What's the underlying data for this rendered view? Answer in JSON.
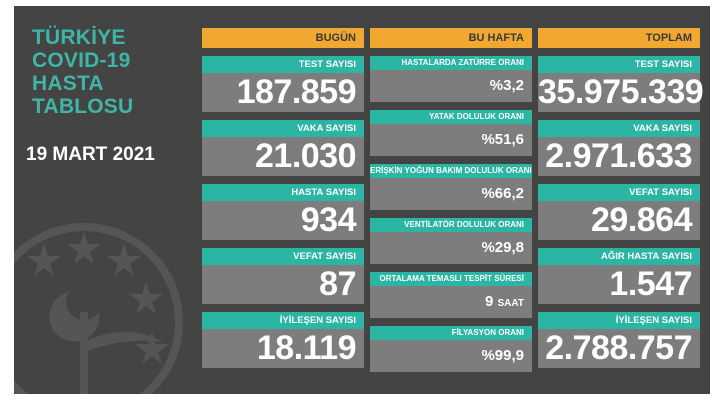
{
  "title_lines": [
    "TÜRKİYE",
    "COVID-19",
    "HASTA",
    "TABLOSU"
  ],
  "date": "19 MART 2021",
  "columns": {
    "today": {
      "header": "BUGÜN",
      "items": [
        {
          "label": "TEST SAYISI",
          "value": "187.859"
        },
        {
          "label": "VAKA SAYISI",
          "value": "21.030"
        },
        {
          "label": "HASTA SAYISI",
          "value": "934"
        },
        {
          "label": "VEFAT SAYISI",
          "value": "87"
        },
        {
          "label": "İYİLEŞEN SAYISI",
          "value": "18.119"
        }
      ]
    },
    "week": {
      "header": "BU HAFTA",
      "items": [
        {
          "label": "HASTALARDA ZATÜRRE ORANI",
          "value": "%3,2",
          "suffix": ""
        },
        {
          "label": "YATAK DOLULUK ORANI",
          "value": "%51,6",
          "suffix": ""
        },
        {
          "label": "ERİŞKİN YOĞUN BAKIM DOLULUK ORANI",
          "value": "%66,2",
          "suffix": ""
        },
        {
          "label": "VENTİLATÖR DOLULUK ORANI",
          "value": "%29,8",
          "suffix": ""
        },
        {
          "label": "ORTALAMA TEMASLI TESPİT SÜRESİ",
          "value": "9",
          "suffix": "SAAT"
        },
        {
          "label": "FİLYASYON ORANI",
          "value": "%99,9",
          "suffix": ""
        }
      ]
    },
    "total": {
      "header": "TOPLAM",
      "items": [
        {
          "label": "TEST SAYISI",
          "value": "35.975.339"
        },
        {
          "label": "VAKA SAYISI",
          "value": "2.971.633"
        },
        {
          "label": "VEFAT SAYISI",
          "value": "29.864"
        },
        {
          "label": "AĞIR HASTA SAYISI",
          "value": "1.547"
        },
        {
          "label": "İYİLEŞEN SAYISI",
          "value": "2.788.757"
        }
      ]
    }
  },
  "colors": {
    "header": "#f0a830",
    "label": "#2bb5a3",
    "value_bg": "#7d7d7d",
    "panel": "#444444",
    "title": "#3fb5a5"
  },
  "icons": {
    "emblem": "ministry-of-health-emblem-icon"
  }
}
